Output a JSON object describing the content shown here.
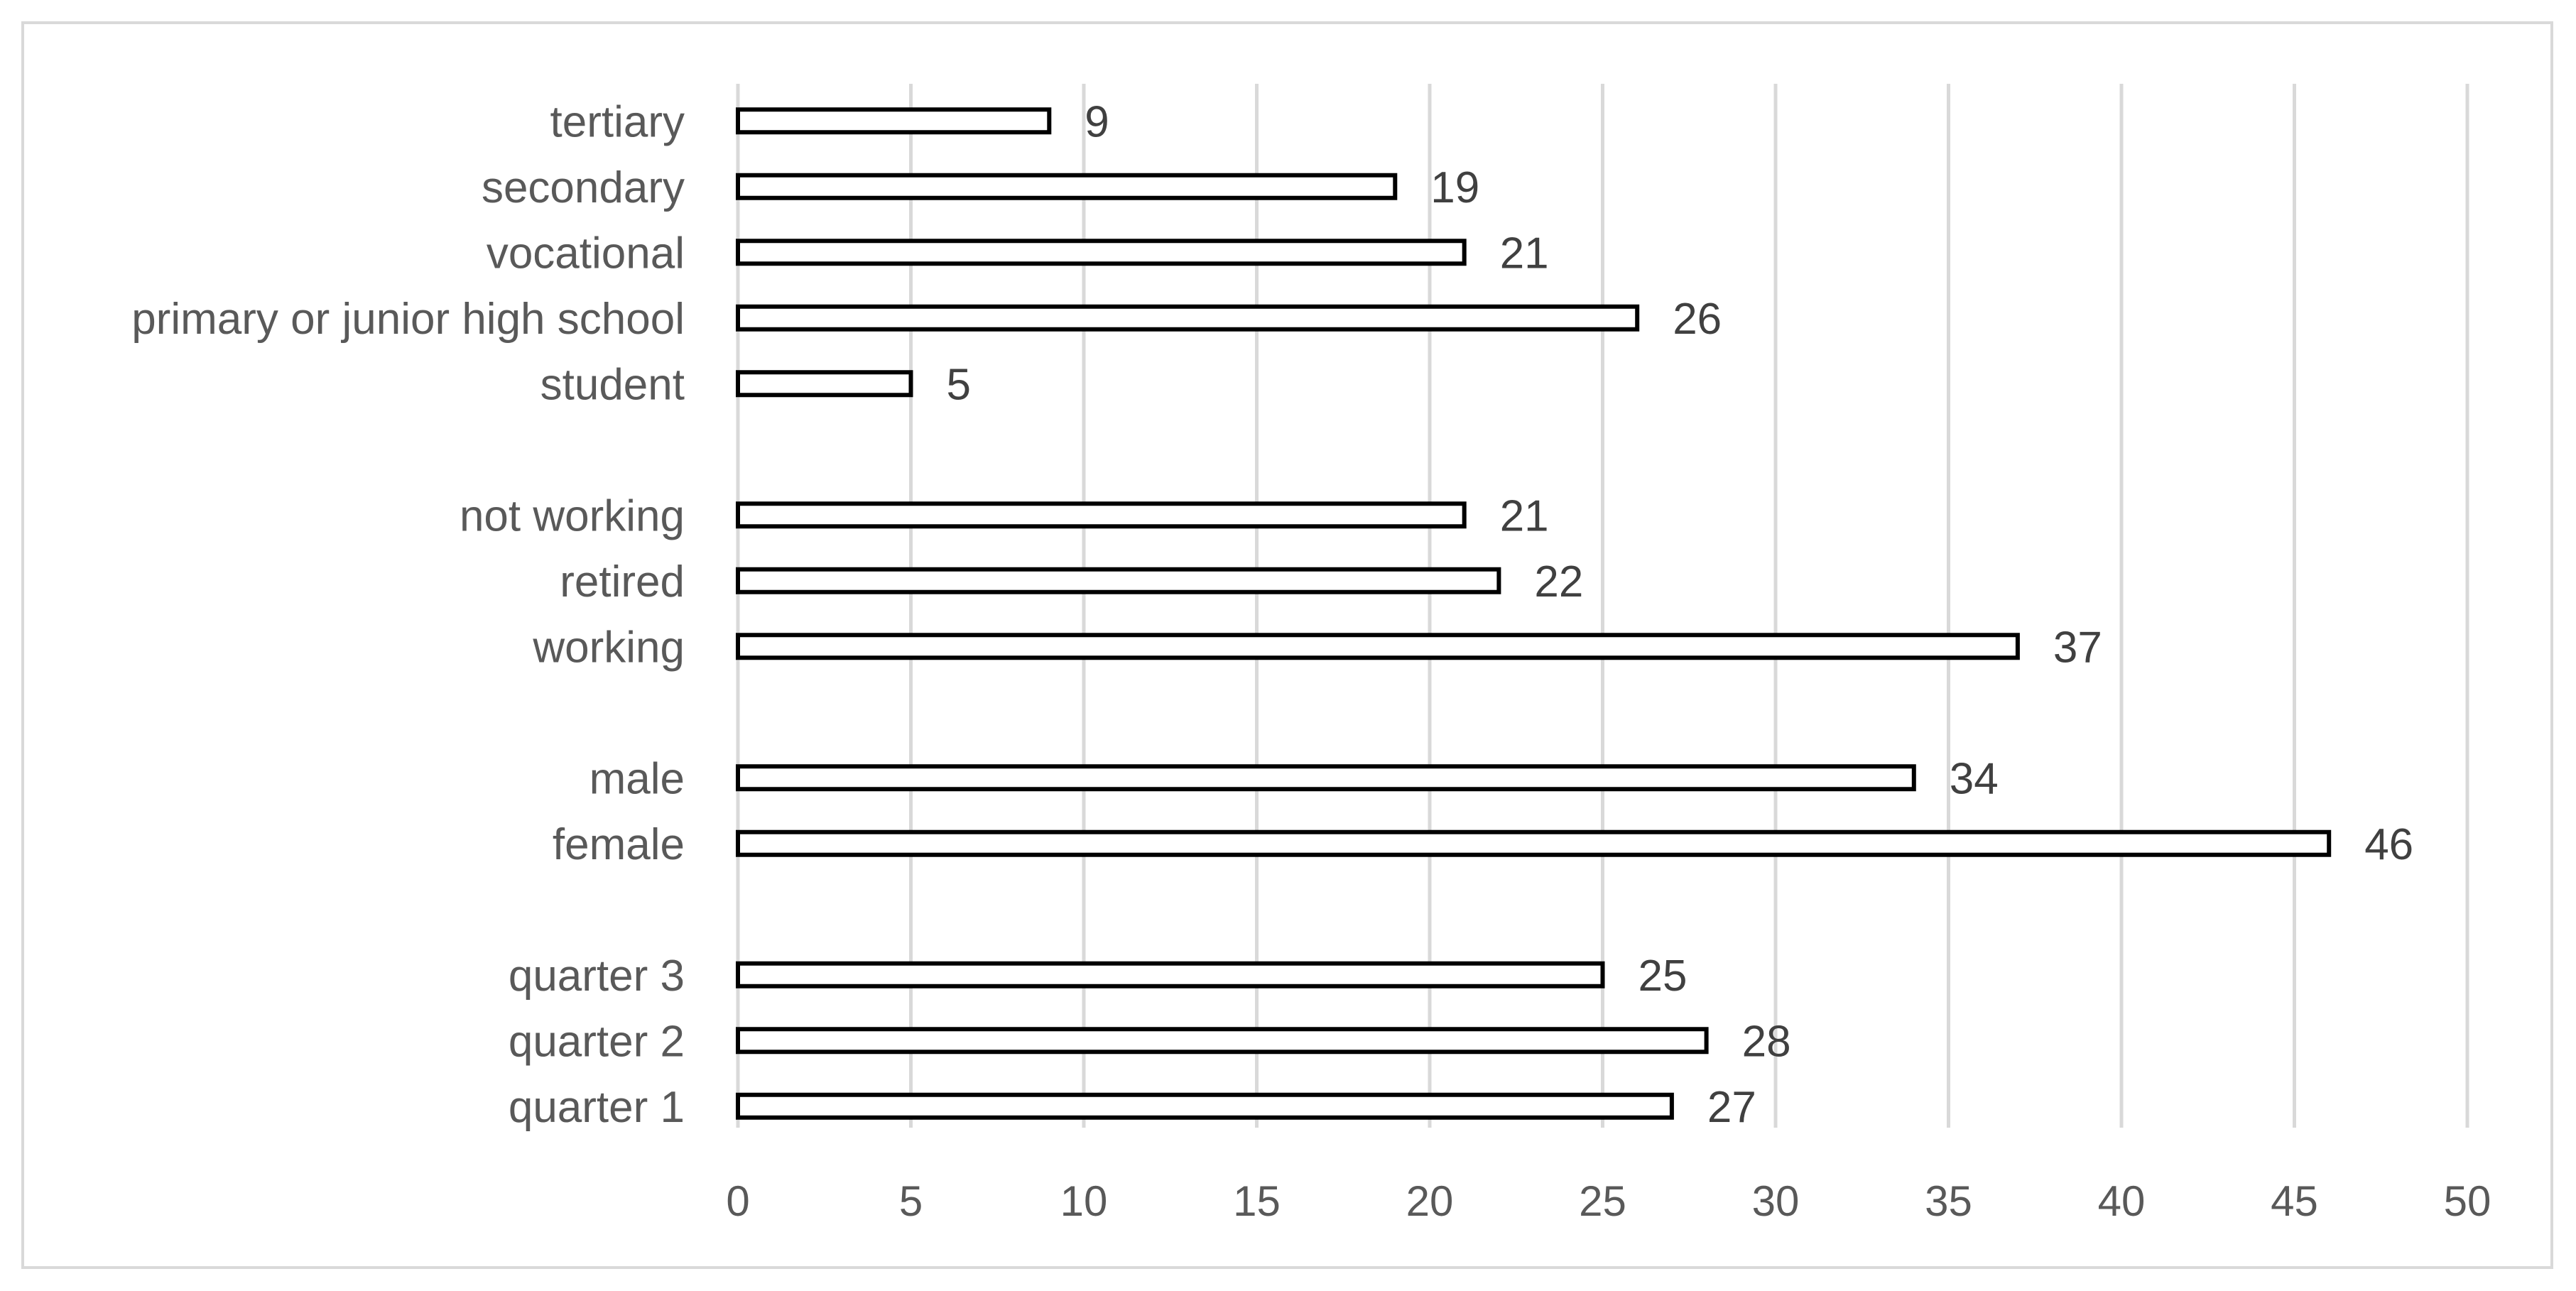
{
  "chart_data": {
    "type": "bar",
    "orientation": "horizontal",
    "categories": [
      "tertiary",
      "secondary",
      "vocational",
      "primary or junior high school",
      "student",
      "",
      "not working",
      "retired",
      "working",
      "",
      "male",
      "female",
      "",
      "quarter 3",
      "quarter 2",
      "quarter 1"
    ],
    "values": [
      9,
      19,
      21,
      26,
      5,
      null,
      21,
      22,
      37,
      null,
      34,
      46,
      null,
      25,
      28,
      27
    ],
    "xlim": [
      0,
      50
    ],
    "xticks": [
      0,
      5,
      10,
      15,
      20,
      25,
      30,
      35,
      40,
      45,
      50
    ],
    "grid": "vertical",
    "data_labels": true,
    "legend": "none",
    "title": "",
    "xlabel": "",
    "ylabel": ""
  },
  "colors": {
    "bar_fill": "#ffffff",
    "bar_stroke": "#000000",
    "gridline": "#d9d9d9",
    "frame": "#d9d9d9",
    "text": "#595959"
  }
}
